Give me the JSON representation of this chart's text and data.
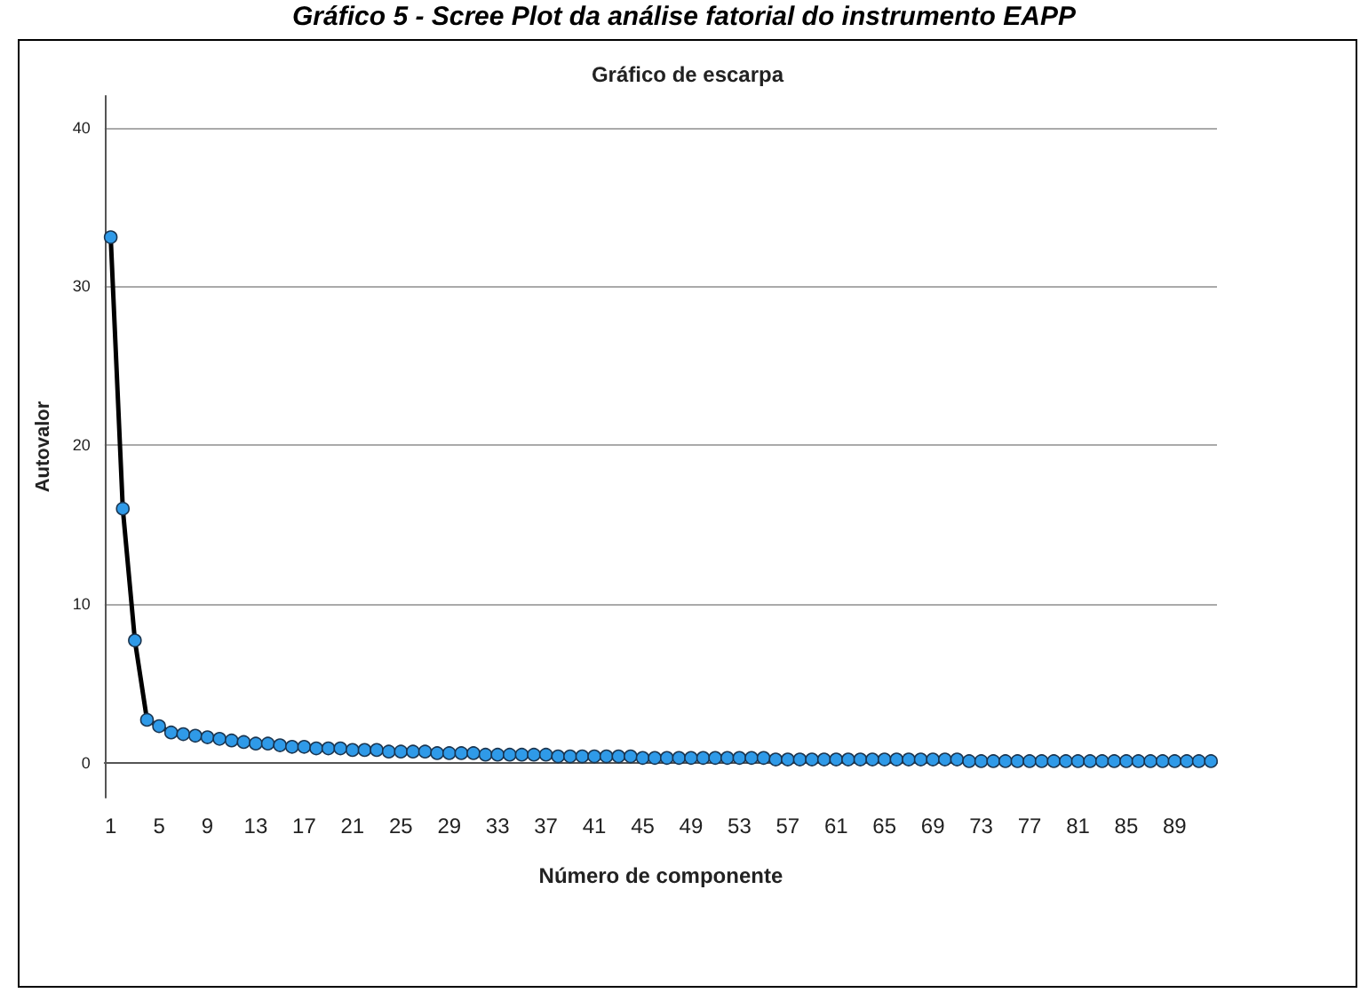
{
  "chart_data": {
    "type": "line",
    "title": "Gráfico de escarpa",
    "annotations": [
      "Gráfico 5 - Scree Plot da análise fatorial do instrumento EAPP"
    ],
    "xlabel": "Número de componente",
    "ylabel": "Autovalor",
    "categories": [
      "1",
      null,
      null,
      null,
      "5",
      null,
      null,
      null,
      "9",
      null,
      null,
      null,
      "13",
      null,
      null,
      null,
      "17",
      null,
      null,
      null,
      "21",
      null,
      null,
      null,
      "25",
      null,
      null,
      null,
      "29",
      null,
      null,
      null,
      "33",
      null,
      null,
      null,
      "37",
      null,
      null,
      null,
      "41",
      null,
      null,
      null,
      "45",
      null,
      null,
      null,
      "49",
      null,
      null,
      null,
      "53",
      null,
      null,
      null,
      "57",
      null,
      null,
      null,
      "61",
      null,
      null,
      null,
      "65",
      null,
      null,
      null,
      "69",
      null,
      null,
      null,
      "73",
      null,
      null,
      null,
      "77",
      null,
      null,
      null,
      "81",
      null,
      null,
      null,
      "85",
      null,
      null,
      null,
      "89",
      null,
      null,
      null
    ],
    "series": [
      {
        "color": "#2f9ae8",
        "values": [
          33.1,
          16.0,
          7.7,
          2.7,
          2.3,
          1.9,
          1.8,
          1.7,
          1.6,
          1.5,
          1.4,
          1.3,
          1.2,
          1.2,
          1.1,
          1.0,
          1.0,
          0.9,
          0.9,
          0.9,
          0.8,
          0.8,
          0.8,
          0.7,
          0.7,
          0.7,
          0.7,
          0.6,
          0.6,
          0.6,
          0.6,
          0.5,
          0.5,
          0.5,
          0.5,
          0.5,
          0.5,
          0.4,
          0.4,
          0.4,
          0.4,
          0.4,
          0.4,
          0.4,
          0.3,
          0.3,
          0.3,
          0.3,
          0.3,
          0.3,
          0.3,
          0.3,
          0.3,
          0.3,
          0.3,
          0.2,
          0.2,
          0.2,
          0.2,
          0.2,
          0.2,
          0.2,
          0.2,
          0.2,
          0.2,
          0.2,
          0.2,
          0.2,
          0.2,
          0.2,
          0.2,
          0.1,
          0.1,
          0.1,
          0.1,
          0.1,
          0.1,
          0.1,
          0.1,
          0.1,
          0.1,
          0.1,
          0.1,
          0.1,
          0.1,
          0.1,
          0.1,
          0.1,
          0.1,
          0.1,
          0.1,
          0.1
        ]
      }
    ],
    "marker": "circle",
    "line_style": "solid",
    "ylim": [
      -2.2,
      42
    ],
    "yticks": [
      0,
      10,
      20,
      30,
      40
    ],
    "grid": "y"
  }
}
